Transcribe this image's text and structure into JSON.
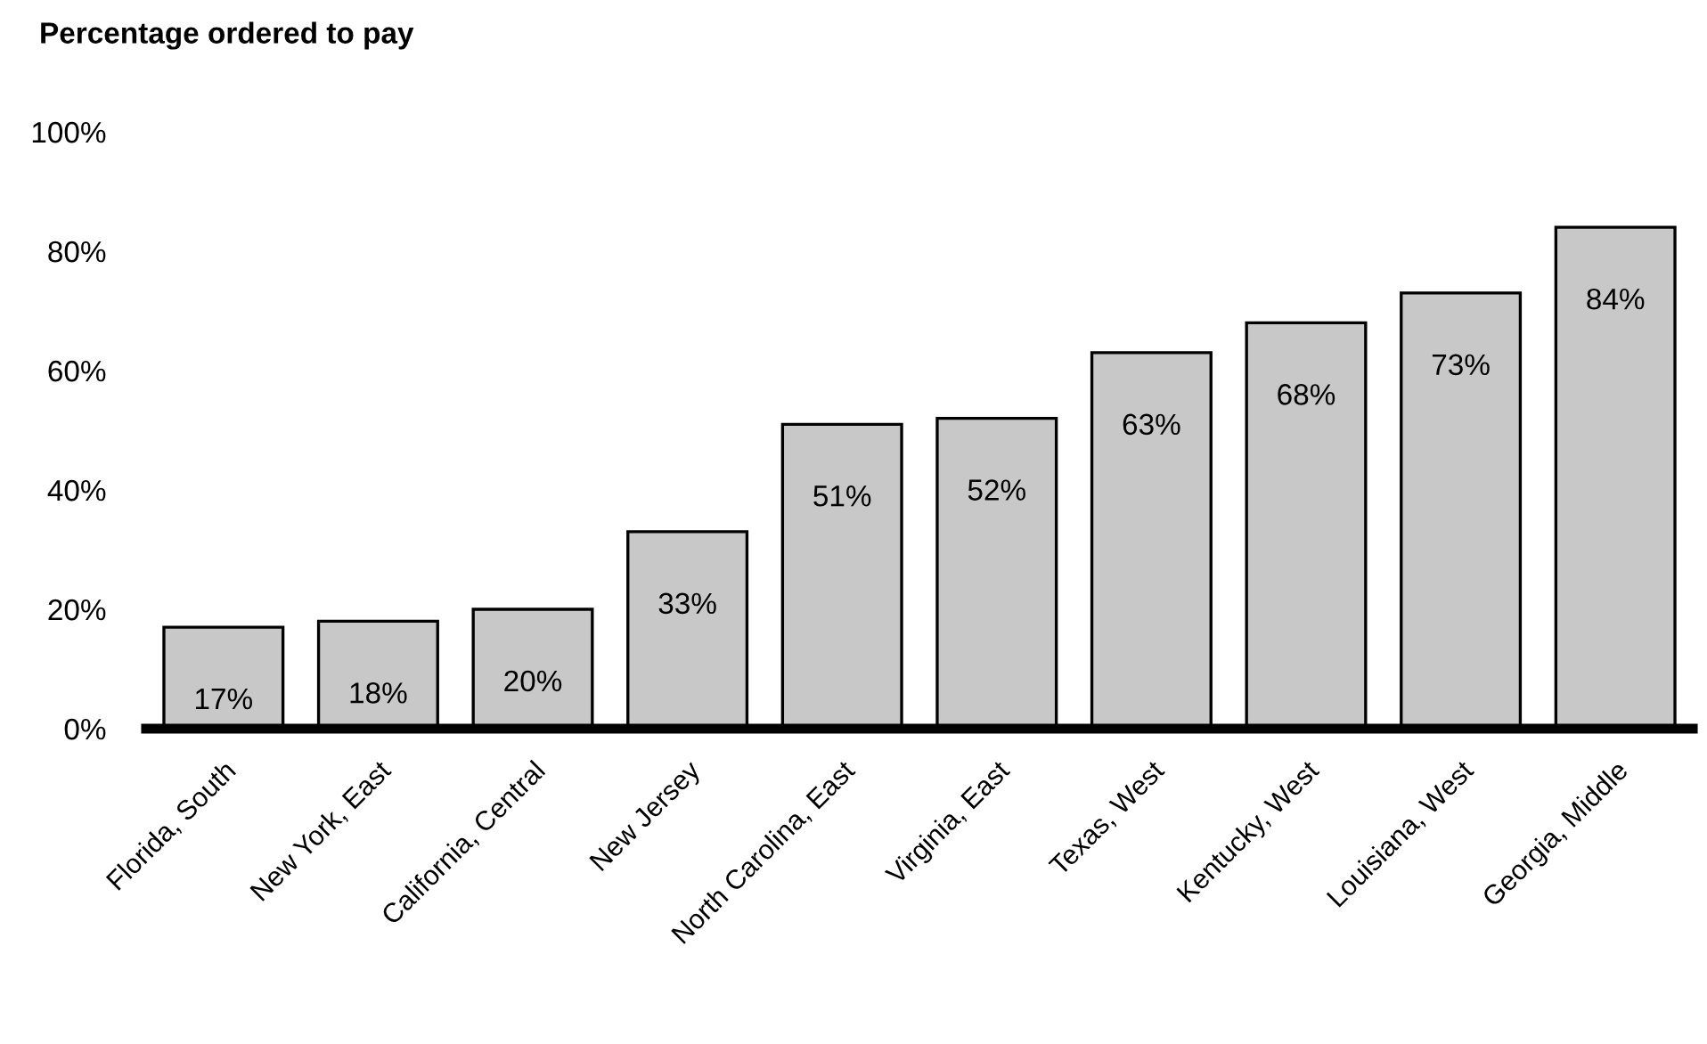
{
  "chart_data": {
    "type": "bar",
    "title": "Percentage ordered to pay",
    "categories": [
      "Florida, South",
      "New York, East",
      "California, Central",
      "New Jersey",
      "North Carolina, East",
      "Virginia, East",
      "Texas, West",
      "Kentucky, West",
      "Louisiana, West",
      "Georgia, Middle"
    ],
    "values": [
      17,
      18,
      20,
      33,
      51,
      52,
      63,
      68,
      73,
      84
    ],
    "value_labels": [
      "17%",
      "18%",
      "20%",
      "33%",
      "51%",
      "52%",
      "63%",
      "68%",
      "73%",
      "84%"
    ],
    "color": "#c8c8c9",
    "ylim": [
      0,
      100
    ],
    "yticks": [
      {
        "value": 0,
        "label": "0%"
      },
      {
        "value": 20,
        "label": "20%"
      },
      {
        "value": 40,
        "label": "40%"
      },
      {
        "value": 60,
        "label": "60%"
      },
      {
        "value": 80,
        "label": "80%"
      },
      {
        "value": 100,
        "label": "100%"
      }
    ],
    "grid": false
  }
}
